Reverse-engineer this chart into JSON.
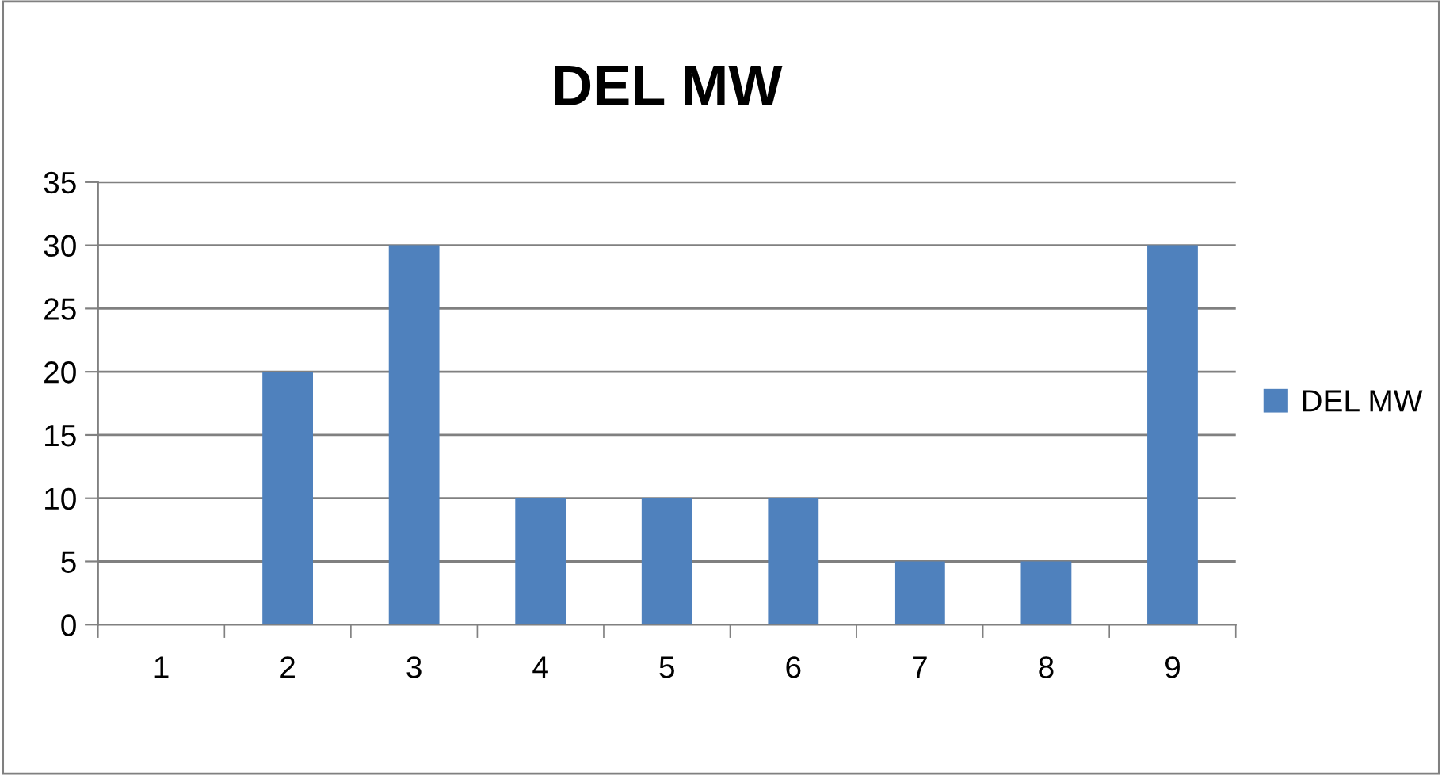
{
  "chart_data": {
    "type": "bar",
    "title": "DEL MW",
    "categories": [
      "1",
      "2",
      "3",
      "4",
      "5",
      "6",
      "7",
      "8",
      "9"
    ],
    "series": [
      {
        "name": "DEL MW",
        "color": "#4f81bd",
        "values": [
          0,
          20,
          30,
          10,
          10,
          10,
          5,
          5,
          30
        ]
      }
    ],
    "ylim": [
      0,
      35
    ],
    "yticks": [
      0,
      5,
      10,
      15,
      20,
      25,
      30,
      35
    ],
    "grid": "y",
    "legend": "right"
  }
}
